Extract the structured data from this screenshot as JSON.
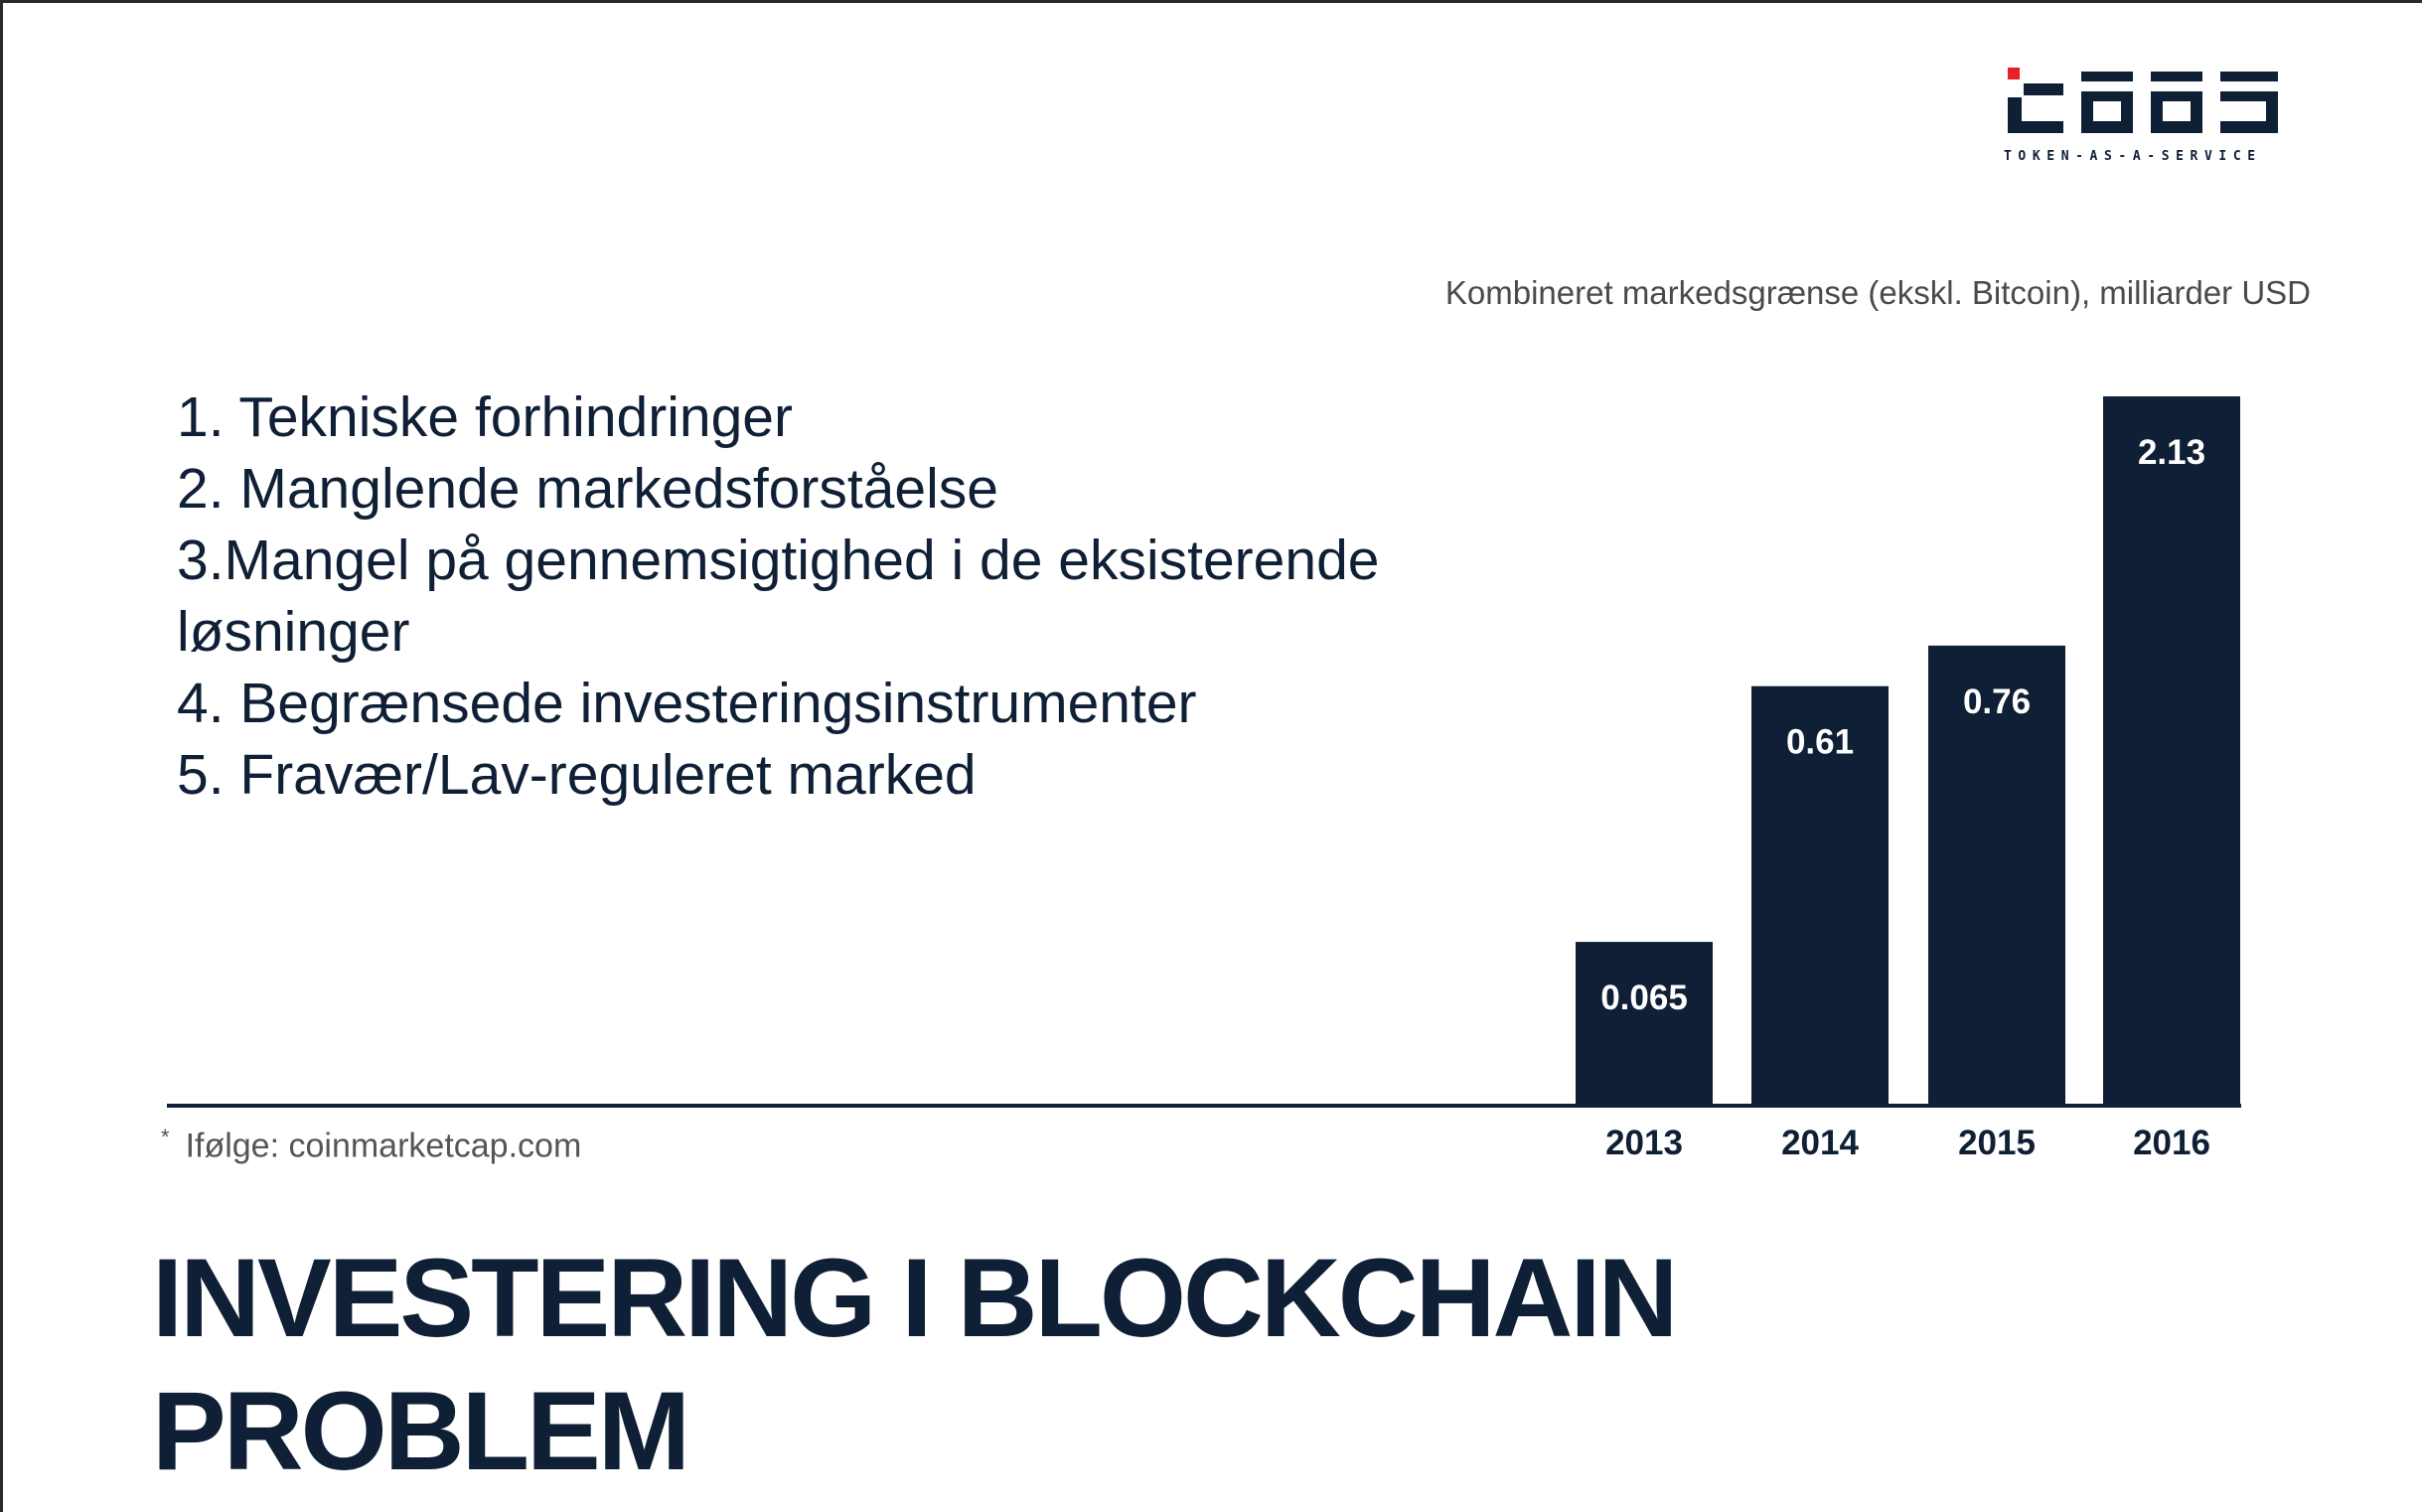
{
  "logo": {
    "name": "logo-taas",
    "subtitle": "TOKEN-AS-A-SERVICE",
    "accent_color": "#e8202a",
    "primary_color": "#0f1f35"
  },
  "problems": [
    "1. Tekniske forhindringer",
    "2. Manglende markedsforståelse",
    "3.Mangel på gennemsigtighed i de eksisterende",
    "løsninger",
    "4. Begrænsede investeringsinstrumenter",
    "5. Fravær/Lav-reguleret marked"
  ],
  "footnote": {
    "star": "*",
    "text": "Ifølge: coinmarketcap.com"
  },
  "headline": {
    "line1": "INVESTERING I BLOCKCHAIN",
    "line2": "PROBLEM"
  },
  "chart_data": {
    "type": "bar",
    "title": "Kombineret markedsgrænse (ekskl. Bitcoin), milliarder USD",
    "categories": [
      "2013",
      "2014",
      "2015",
      "2016"
    ],
    "values": [
      0.065,
      0.61,
      0.76,
      2.13
    ],
    "value_labels": [
      "0.065",
      "0.61",
      "0.76",
      "2.13"
    ],
    "bar_color": "#0f1f35",
    "grid": false,
    "legend": "none"
  }
}
